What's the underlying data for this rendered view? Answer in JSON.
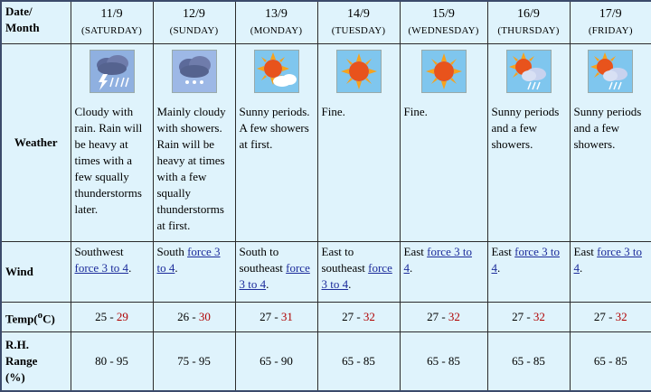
{
  "header": {
    "date_label_line1": "Date/",
    "date_label_line2": "Month",
    "weather_label": "Weather",
    "wind_label": "Wind",
    "temp_label_prefix": "Temp(",
    "temp_label_sup": "o",
    "temp_label_suffix": "C)",
    "rh_label_line1": "R.H.",
    "rh_label_line2": "Range",
    "rh_label_line3": "(%)"
  },
  "days": [
    {
      "date": "11/9",
      "day": "(SATURDAY)",
      "icon": "cloudy-rain-thunder-icon",
      "weather": "Cloudy with rain. Rain will be heavy at times with a few squally thunderstorms later.",
      "wind_text": "Southwest",
      "wind_link": "force 3 to 4",
      "wind_suffix": ".",
      "temp_min": "25",
      "temp_sep": " - ",
      "temp_max": "29",
      "rh": "80 - 95"
    },
    {
      "date": "12/9",
      "day": "(SUNDAY)",
      "icon": "cloudy-showers-icon",
      "weather": "Mainly cloudy with showers. Rain will be heavy at times with a few squally thunderstorms at first.",
      "wind_text": "South",
      "wind_link": "force 3 to 4",
      "wind_suffix": ".",
      "temp_min": "26",
      "temp_sep": " - ",
      "temp_max": "30",
      "rh": "75 - 95"
    },
    {
      "date": "13/9",
      "day": "(MONDAY)",
      "icon": "sunny-periods-icon",
      "weather": "Sunny periods. A few showers at first.",
      "wind_text": "South to southeast",
      "wind_link": "force 3 to 4",
      "wind_suffix": ".",
      "temp_min": "27",
      "temp_sep": " - ",
      "temp_max": "31",
      "rh": "65 - 90"
    },
    {
      "date": "14/9",
      "day": "(TUESDAY)",
      "icon": "sunny-icon",
      "weather": "Fine.",
      "wind_text": "East to southeast",
      "wind_link": "force 3 to 4",
      "wind_suffix": ".",
      "temp_min": "27",
      "temp_sep": " - ",
      "temp_max": "32",
      "rh": "65 - 85"
    },
    {
      "date": "15/9",
      "day": "(WEDNESDAY)",
      "icon": "sunny-icon",
      "weather": "Fine.",
      "wind_text": "East",
      "wind_link": "force 3 to 4",
      "wind_suffix": ".",
      "temp_min": "27",
      "temp_sep": " - ",
      "temp_max": "32",
      "rh": "65 - 85"
    },
    {
      "date": "16/9",
      "day": "(THURSDAY)",
      "icon": "sunny-periods-showers-icon",
      "weather": "Sunny periods and a few showers.",
      "wind_text": "East",
      "wind_link": "force 3 to 4",
      "wind_suffix": ".",
      "temp_min": "27",
      "temp_sep": " - ",
      "temp_max": "32",
      "rh": "65 - 85"
    },
    {
      "date": "17/9",
      "day": "(FRIDAY)",
      "icon": "sunny-periods-showers-icon",
      "weather": "Sunny periods and a few showers.",
      "wind_text": "East",
      "wind_link": "force 3 to 4",
      "wind_suffix": ".",
      "temp_min": "27",
      "temp_sep": " - ",
      "temp_max": "32",
      "rh": "65 - 85"
    }
  ],
  "colors": {
    "cell_bg": "#dff3fc",
    "date_label": "#c0237a",
    "weather_label": "#2b3b8c",
    "wind_label": "#3ab520",
    "temp_label": "#b00000",
    "link": "#1b2b9b"
  }
}
